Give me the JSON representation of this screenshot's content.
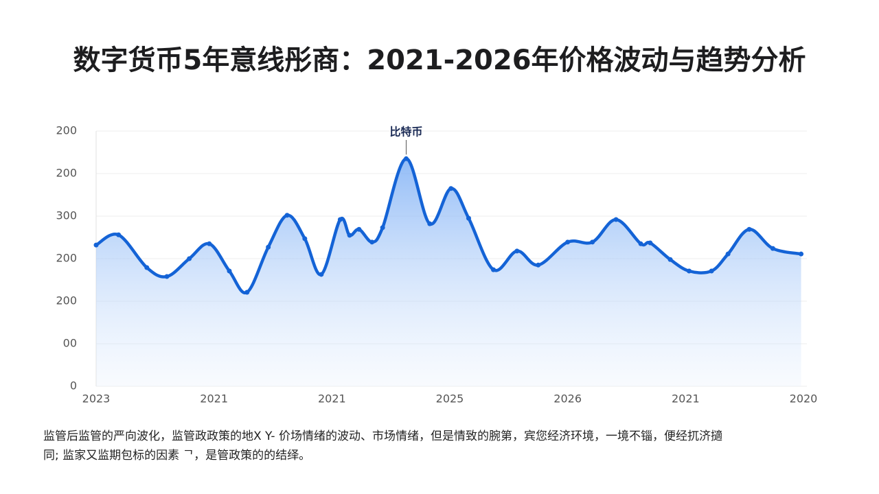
{
  "title": "数字货币5年意线彤商：2021-2026年价格波动与趋势分析",
  "chart_data": {
    "type": "line",
    "annotation": "比特币",
    "color": "#1463d6",
    "grid": true,
    "xlim": [
      0,
      6
    ],
    "xticks": [
      {
        "value": 0,
        "label": "2023"
      },
      {
        "value": 1,
        "label": "2021"
      },
      {
        "value": 2,
        "label": "2021"
      },
      {
        "value": 3,
        "label": "2025"
      },
      {
        "value": 4,
        "label": "2026"
      },
      {
        "value": 5,
        "label": "2021"
      },
      {
        "value": 6,
        "label": "2020"
      }
    ],
    "ylim": [
      0,
      600
    ],
    "yticks": [
      0,
      {
        "value": 100,
        "label": "00"
      },
      {
        "value": 200,
        "label": "200"
      },
      {
        "value": 300,
        "label": "200"
      },
      {
        "value": 400,
        "label": "300"
      },
      {
        "value": 500,
        "label": "200"
      },
      {
        "value": 600,
        "label": "200"
      }
    ],
    "x": [
      0,
      0.19,
      0.43,
      0.6,
      0.79,
      0.96,
      1.13,
      1.28,
      1.46,
      1.62,
      1.77,
      1.91,
      2.07,
      2.15,
      2.23,
      2.34,
      2.43,
      2.63,
      2.83,
      3.01,
      3.16,
      3.37,
      3.57,
      3.75,
      4.0,
      4.21,
      4.41,
      4.62,
      4.7,
      4.87,
      5.03,
      5.22,
      5.36,
      5.54,
      5.74,
      5.98
    ],
    "values": [
      332,
      356,
      279,
      258,
      300,
      335,
      271,
      221,
      327,
      402,
      347,
      263,
      392,
      355,
      369,
      339,
      373,
      535,
      382,
      465,
      395,
      274,
      318,
      285,
      339,
      339,
      392,
      335,
      337,
      298,
      271,
      271,
      311,
      369,
      324,
      311
    ]
  },
  "body": [
    "监管后监管的严向波化，监管政政策的地X Y- 价场情绪的波动、市场情绪，但是情致的腕第，宾您经济环境，一境不锱，便经扤济擿",
    "同; 监家又监期包标的因素 ᄀ，是管政策的的结绎。"
  ]
}
